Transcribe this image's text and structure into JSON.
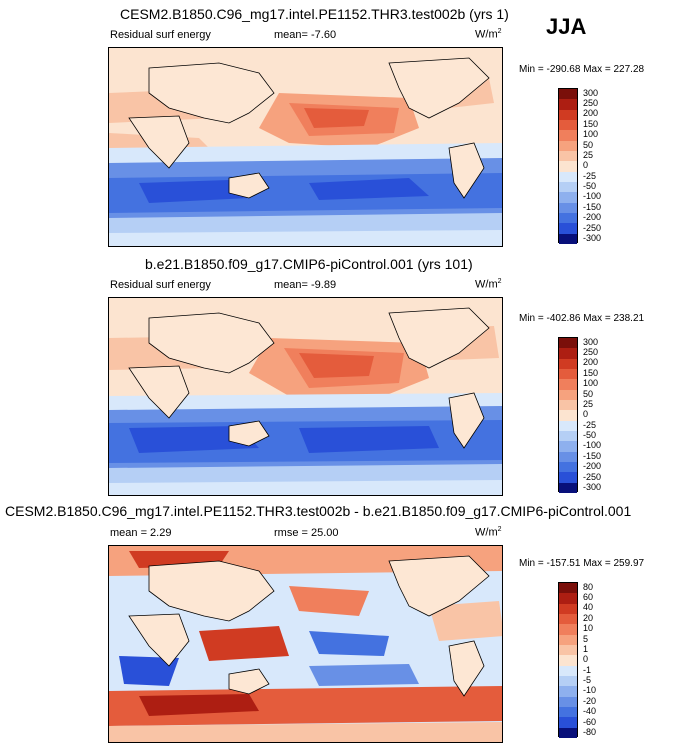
{
  "season": "JJA",
  "colors": {
    "diverging": [
      "#08107a",
      "#0e2fc0",
      "#2950d8",
      "#4472e0",
      "#6890e6",
      "#8eb0ee",
      "#b5cff5",
      "#d8e8fb",
      "#fce4d0",
      "#f9c4a6",
      "#f6a27e",
      "#f07f5c",
      "#e45c3c",
      "#d03b22",
      "#ad1e12",
      "#7a0f0a"
    ],
    "land": "#fde7d4"
  },
  "panels": [
    {
      "title": "CESM2.B1850.C96_mg17.intel.PE1152.THR3.test002b (yrs 1)",
      "left_label": "Residual surf energy",
      "center_label": "mean=  -7.60",
      "units_base": "W/m",
      "units_exp": "2",
      "minmax": "Min = -290.68 Max = 227.28",
      "levels": [
        "300",
        "250",
        "200",
        "150",
        "100",
        "50",
        "25",
        "0",
        "-25",
        "-50",
        "-100",
        "-150",
        "-200",
        "-250",
        "-300"
      ]
    },
    {
      "title": "b.e21.B1850.f09_g17.CMIP6-piControl.001 (yrs 101)",
      "left_label": "Residual surf energy",
      "center_label": "mean=  -9.89",
      "units_base": "W/m",
      "units_exp": "2",
      "minmax": "Min = -402.86 Max = 238.21",
      "levels": [
        "300",
        "250",
        "200",
        "150",
        "100",
        "50",
        "25",
        "0",
        "-25",
        "-50",
        "-100",
        "-150",
        "-200",
        "-250",
        "-300"
      ]
    },
    {
      "title": "CESM2.B1850.C96_mg17.intel.PE1152.THR3.test002b - b.e21.B1850.f09_g17.CMIP6-piControl.001",
      "left_label": "mean =   2.29",
      "center_label": "rmse =  25.00",
      "units_base": "W/m",
      "units_exp": "2",
      "minmax": "Min = -157.51 Max = 259.97",
      "levels": [
        "80",
        "60",
        "40",
        "20",
        "10",
        "5",
        "1",
        "0",
        "-1",
        "-5",
        "-10",
        "-20",
        "-40",
        "-60",
        "-80"
      ]
    }
  ]
}
